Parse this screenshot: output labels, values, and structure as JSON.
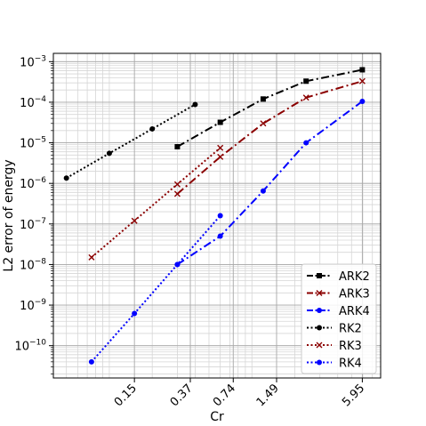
{
  "chart_data": {
    "type": "line",
    "title": "",
    "xlabel": "Cr",
    "ylabel": "L2 error of energy",
    "xscale": "log",
    "yscale": "log",
    "xlim": [
      0.0405,
      8.0
    ],
    "ylim": [
      1.6e-11,
      0.0016
    ],
    "x_ticks": [
      0.15,
      0.37,
      0.74,
      1.49,
      5.95
    ],
    "x_tick_labels": [
      "0.15",
      "0.37",
      "0.74",
      "1.49",
      "5.95"
    ],
    "y_ticks": [
      1e-10,
      1e-09,
      1e-08,
      1e-07,
      1e-06,
      1e-05,
      0.0001,
      0.001
    ],
    "y_tick_labels": [
      "10^-10",
      "10^-9",
      "10^-8",
      "10^-7",
      "10^-6",
      "10^-5",
      "10^-4",
      "10^-3"
    ],
    "grid": true,
    "legend_position": "lower-right",
    "series": [
      {
        "name": "ARK2",
        "color": "#000000",
        "linestyle": "dashdot",
        "marker": "square",
        "x": [
          0.3,
          0.6,
          1.2,
          2.4,
          5.95
        ],
        "y": [
          8e-06,
          3.2e-05,
          0.00012,
          0.00033,
          0.00063
        ]
      },
      {
        "name": "ARK3",
        "color": "#8b0000",
        "linestyle": "dashdot",
        "marker": "x",
        "x": [
          0.3,
          0.6,
          1.2,
          2.4,
          5.95
        ],
        "y": [
          5.5e-07,
          4.5e-06,
          3e-05,
          0.00013,
          0.00033
        ]
      },
      {
        "name": "ARK4",
        "color": "#0000ff",
        "linestyle": "dashdot",
        "marker": "circle",
        "x": [
          0.3,
          0.6,
          1.2,
          2.4,
          5.95
        ],
        "y": [
          1e-08,
          5e-08,
          6.5e-07,
          1e-05,
          0.000105
        ]
      },
      {
        "name": "RK2",
        "color": "#000000",
        "linestyle": "dotted",
        "marker": "circle",
        "x": [
          0.05,
          0.1,
          0.2,
          0.4
        ],
        "y": [
          1.35e-06,
          5.5e-06,
          2.2e-05,
          8.8e-05
        ]
      },
      {
        "name": "RK3",
        "color": "#8b0000",
        "linestyle": "dotted",
        "marker": "x",
        "x": [
          0.075,
          0.15,
          0.3,
          0.6
        ],
        "y": [
          1.5e-08,
          1.2e-07,
          9.5e-07,
          7.5e-06
        ]
      },
      {
        "name": "RK4",
        "color": "#0000ff",
        "linestyle": "dotted",
        "marker": "circle",
        "x": [
          0.075,
          0.15,
          0.3,
          0.6
        ],
        "y": [
          4e-11,
          6.2e-10,
          1e-08,
          1.6e-07
        ]
      }
    ]
  }
}
